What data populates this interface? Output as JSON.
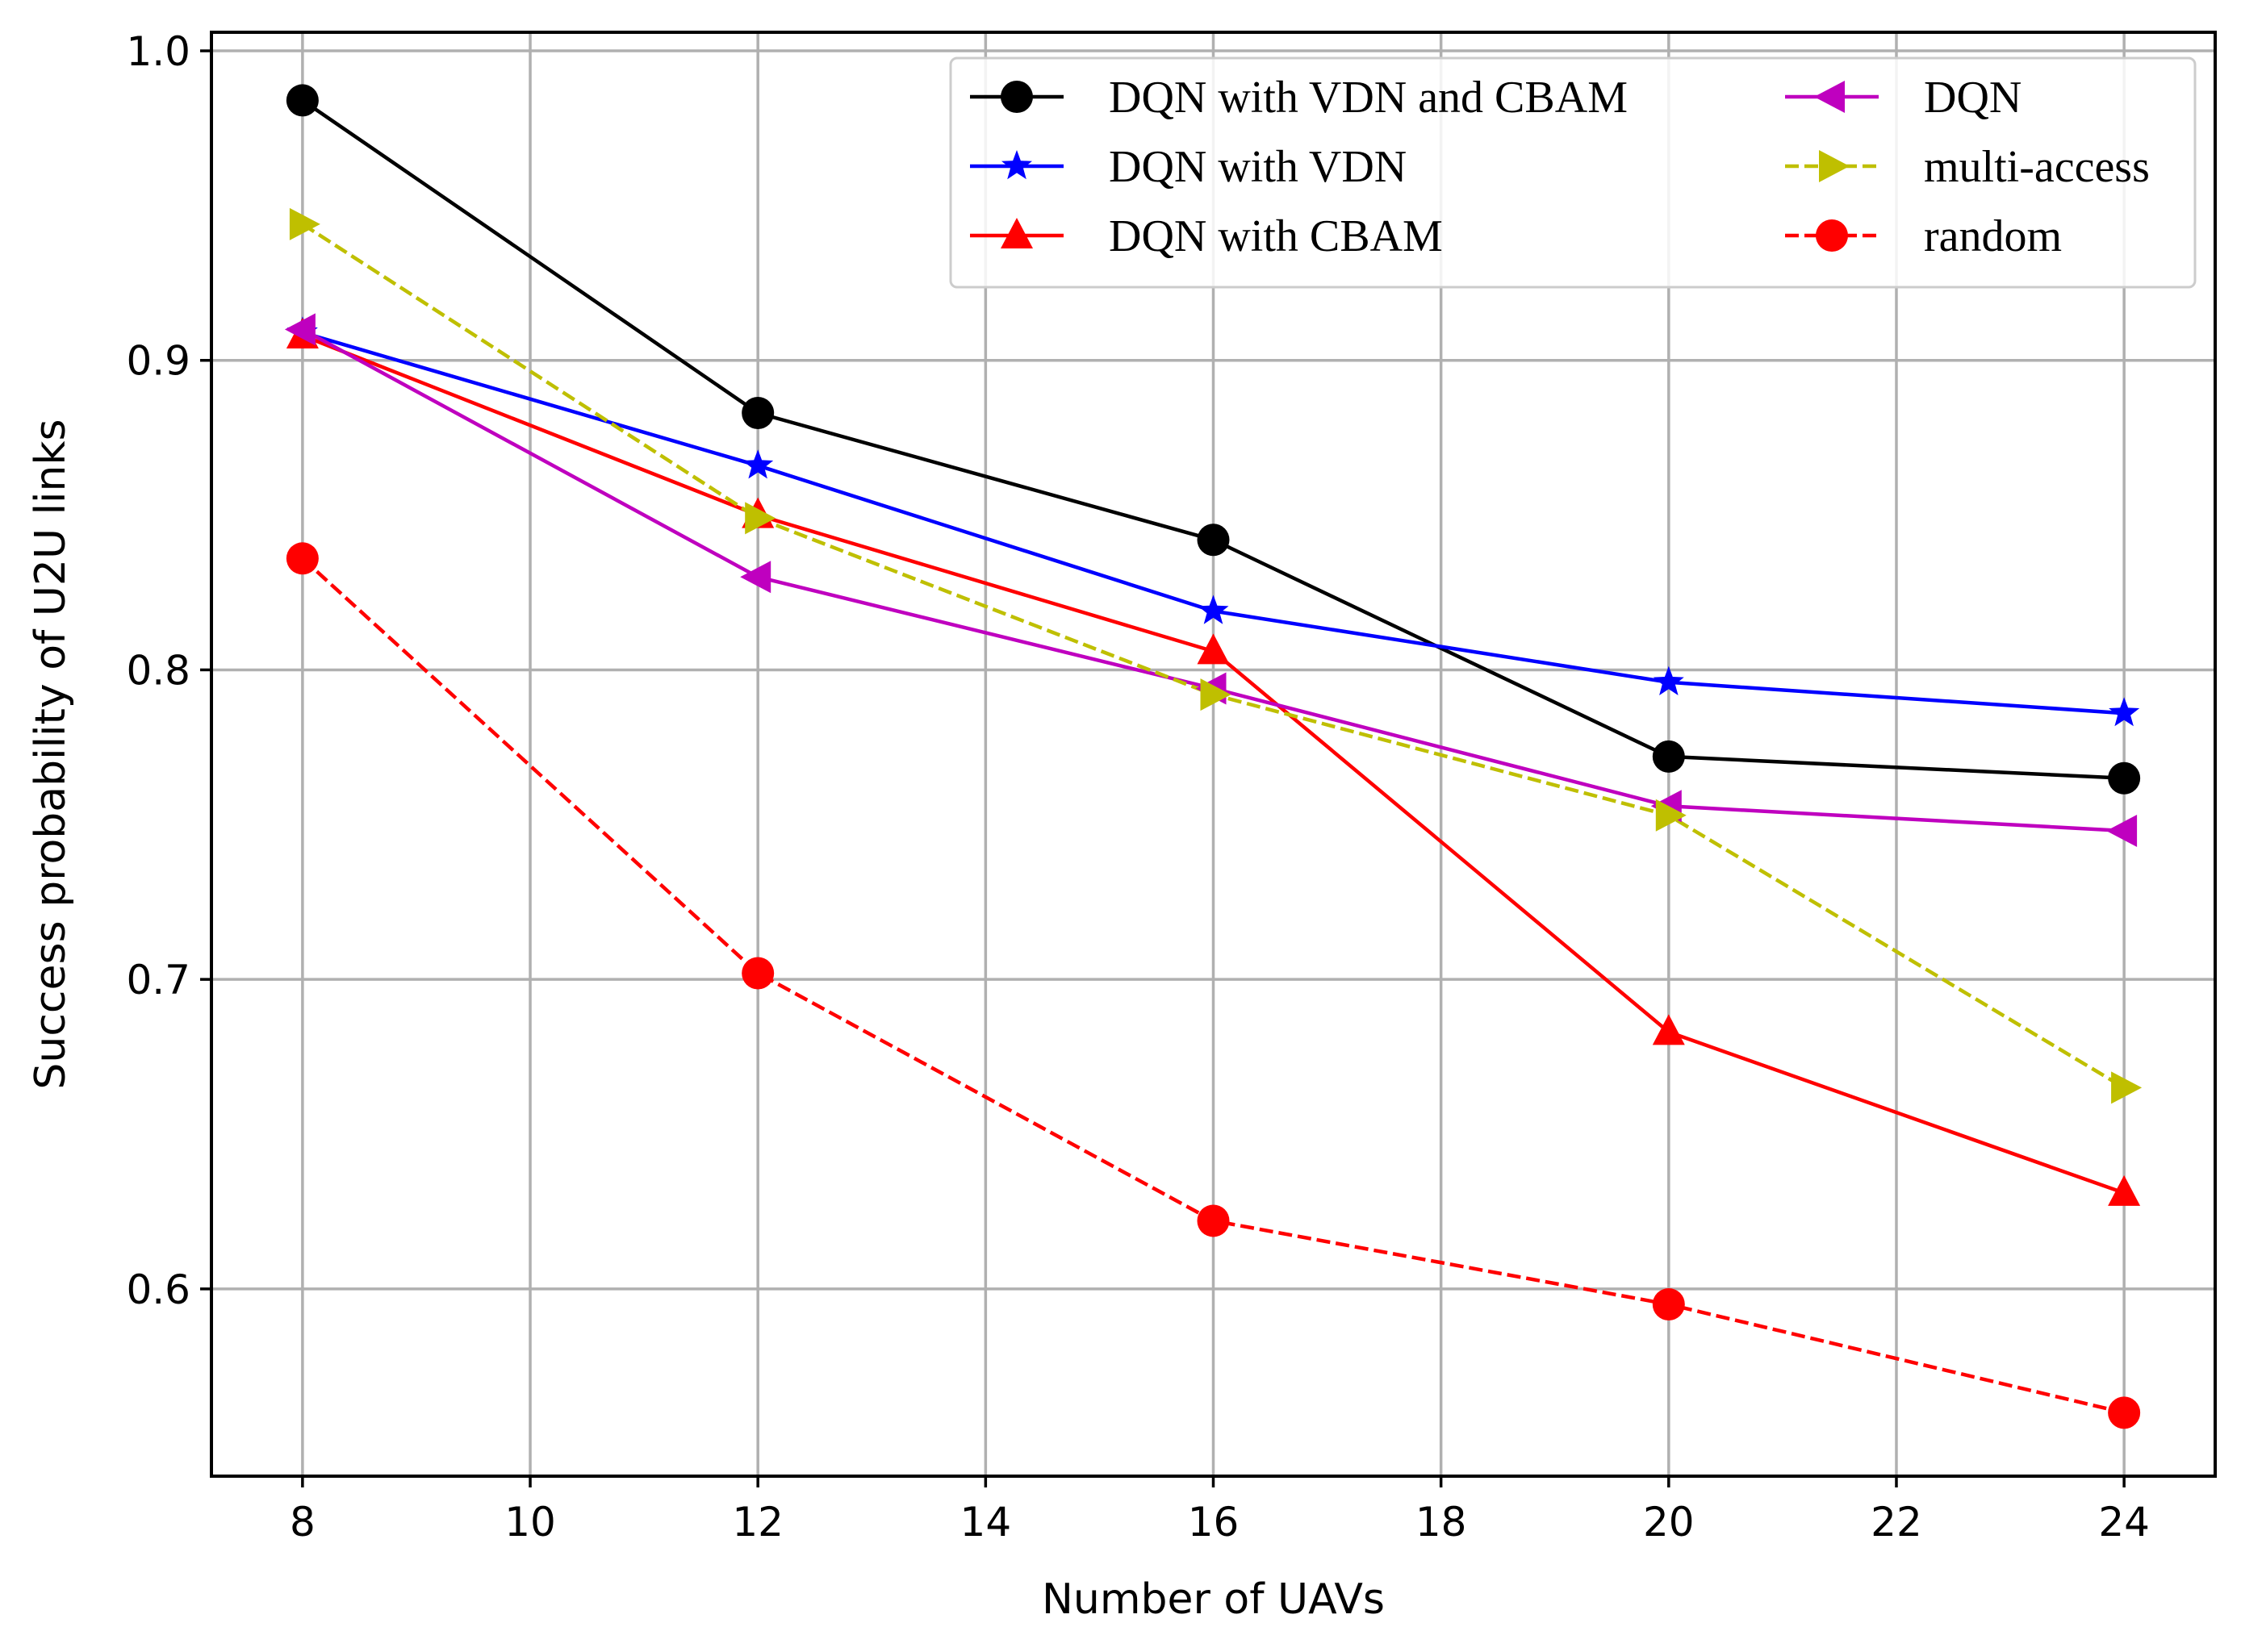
{
  "chart_data": {
    "type": "line",
    "title": "",
    "xlabel": "Number of UAVs",
    "ylabel": "Success probability of U2U links",
    "x": [
      8,
      12,
      16,
      20,
      24
    ],
    "xlim": [
      7.2,
      24.8
    ],
    "ylim": [
      0.5395,
      1.006
    ],
    "xticks": [
      8,
      10,
      12,
      14,
      16,
      18,
      20,
      22,
      24
    ],
    "yticks": [
      0.6,
      0.7,
      0.8,
      0.9,
      1.0
    ],
    "ytick_labels": [
      "0.6",
      "0.7",
      "0.8",
      "0.9",
      "1.0"
    ],
    "grid": true,
    "legend_position": "top-right",
    "legend_columns": 2,
    "series": [
      {
        "name": "DQN with VDN and CBAM",
        "color": "#000000",
        "marker": "circle",
        "linestyle": "solid",
        "values": [
          0.984,
          0.883,
          0.842,
          0.772,
          0.765
        ]
      },
      {
        "name": "DQN with VDN",
        "color": "#0000ff",
        "marker": "star",
        "linestyle": "solid",
        "values": [
          0.909,
          0.866,
          0.819,
          0.796,
          0.786
        ]
      },
      {
        "name": "DQN with CBAM",
        "color": "#ff0000",
        "marker": "triangle-up",
        "linestyle": "solid",
        "values": [
          0.908,
          0.85,
          0.806,
          0.683,
          0.631
        ]
      },
      {
        "name": "DQN",
        "color": "#bf00bf",
        "marker": "triangle-left",
        "linestyle": "solid",
        "values": [
          0.91,
          0.83,
          0.794,
          0.756,
          0.748
        ]
      },
      {
        "name": "multi-access",
        "color": "#bfbf00",
        "marker": "triangle-right",
        "linestyle": "dashed",
        "values": [
          0.944,
          0.849,
          0.792,
          0.753,
          0.665
        ]
      },
      {
        "name": "random",
        "color": "#ff0000",
        "marker": "circle",
        "linestyle": "dashed",
        "values": [
          0.836,
          0.702,
          0.622,
          0.595,
          0.56
        ]
      }
    ]
  }
}
